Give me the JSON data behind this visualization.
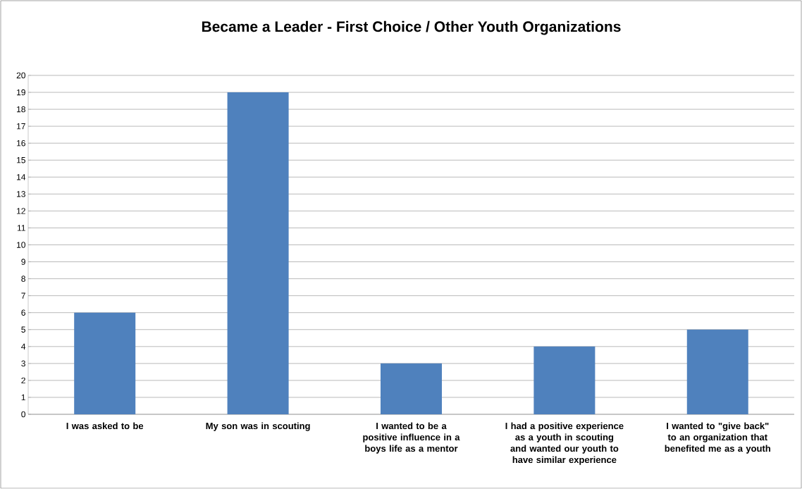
{
  "chart_data": {
    "type": "bar",
    "title": "Became a Leader - First Choice / Other Youth Organizations",
    "categories": [
      "I was asked to be",
      "My son was in scouting",
      "I wanted to be a positive influence in a boys life as a mentor",
      "I had a positive experience as a youth in scouting and wanted our youth to have similar experience",
      "I wanted to \"give back\" to an organization that benefited me as a youth"
    ],
    "values": [
      6,
      19,
      3,
      4,
      5
    ],
    "color": "#4f81bd",
    "ylim": [
      0,
      20
    ],
    "yticks": [
      0,
      1,
      2,
      3,
      4,
      5,
      6,
      7,
      8,
      9,
      10,
      11,
      12,
      13,
      14,
      15,
      16,
      17,
      18,
      19,
      20
    ],
    "grid": "y"
  }
}
